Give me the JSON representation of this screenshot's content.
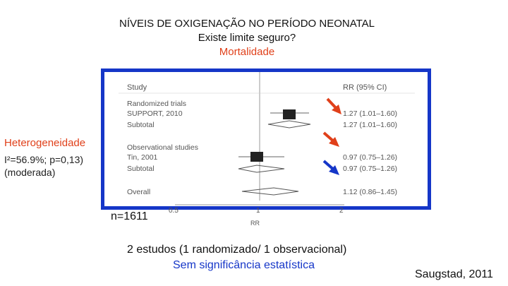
{
  "header": {
    "line1": "NÍVEIS DE OXIGENAÇÃO NO PERÍODO NEONATAL",
    "line2": "Existe limite seguro?",
    "line3": "Mortalidade"
  },
  "forest_plot": {
    "col_study": "Study",
    "col_rr": "RR (95% CI)",
    "group1": "Randomized trials",
    "row_support": "SUPPORT, 2010",
    "rr_support": "1.27 (1.01–1.60)",
    "subtotal1": "Subtotal",
    "rr_subtotal1": "1.27 (1.01–1.60)",
    "group2": "Observational studies",
    "row_tin": "Tin, 2001",
    "rr_tin": "0.97 (0.75–1.26)",
    "subtotal2": "Subtotal",
    "rr_subtotal2": "0.97 (0.75–1.26)",
    "overall": "Overall",
    "rr_overall": "1.12 (0.86–1.45)",
    "tick_05": "0.5",
    "tick_1": "1",
    "tick_2": "2",
    "axis_label": "RR",
    "arrow_colors": [
      "#e0401a",
      "#e0401a",
      "#1536c8"
    ]
  },
  "sample": "n=1611",
  "heterogeneity": {
    "title": "Heterogeneidade",
    "stat": "I²=56.9%; p=0,13)",
    "desc": "(moderada)"
  },
  "footer": {
    "line1": "2 estudos (1 randomizado/ 1 observacional)",
    "line2": "Sem significância estatística",
    "reference": "Saugstad, 2011"
  }
}
